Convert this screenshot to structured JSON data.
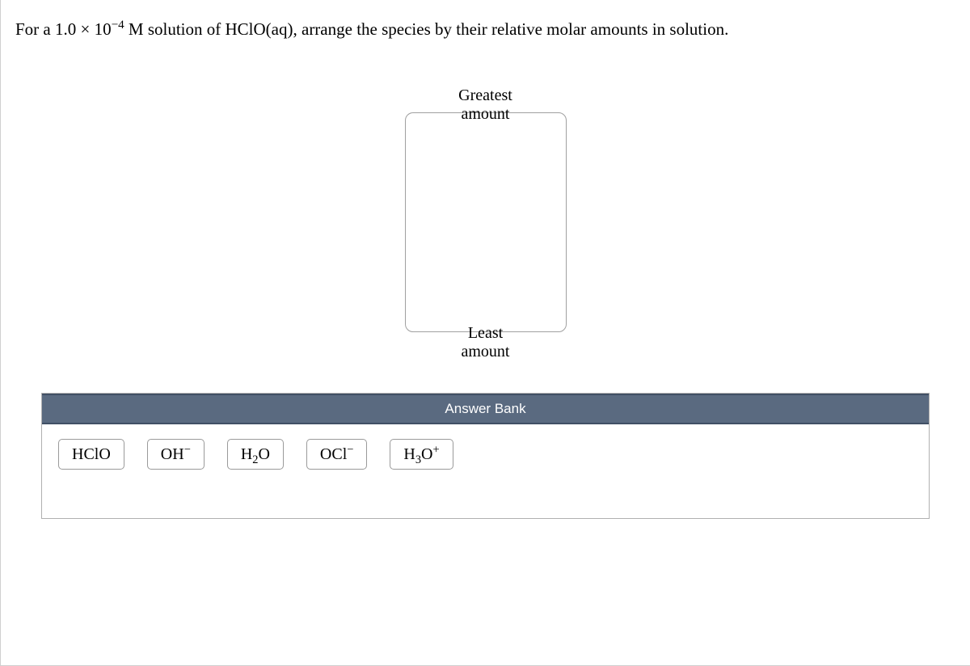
{
  "question": {
    "prefix": "For a 1.0 × 10",
    "exponent": "−4",
    "suffix": " M solution of HClO(aq), arrange the species by their relative molar amounts in solution."
  },
  "ranking": {
    "top_label": "Greatest amount",
    "bottom_label": "Least amount"
  },
  "answer_bank": {
    "header": "Answer Bank",
    "tiles": [
      {
        "type": "plain",
        "text": "HClO"
      },
      {
        "type": "ion",
        "base": "OH",
        "super": "−"
      },
      {
        "type": "sub",
        "base1": "H",
        "sub": "2",
        "base2": "O"
      },
      {
        "type": "ion",
        "base": "OCl",
        "super": "−"
      },
      {
        "type": "subion",
        "base1": "H",
        "sub": "3",
        "base2": "O",
        "super": "+"
      }
    ]
  },
  "colors": {
    "border_gray": "#d0d0d0",
    "tile_border": "#9a9a9a",
    "bank_header_bg": "#5a6a80",
    "bank_header_border": "#415065",
    "text": "#000000",
    "white": "#ffffff"
  }
}
